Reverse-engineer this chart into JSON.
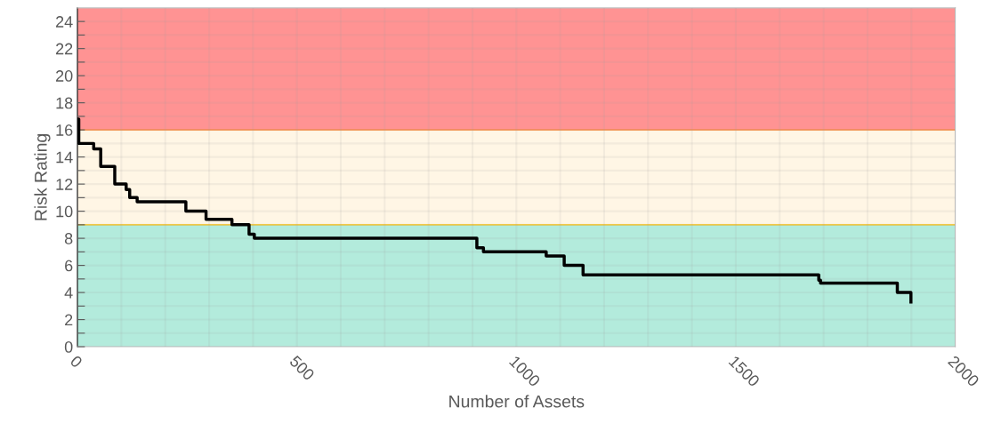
{
  "chart_data": {
    "type": "step",
    "xlabel": "Number of Assets",
    "ylabel": "Risk Rating",
    "xlim": [
      0,
      2000
    ],
    "ylim": [
      0,
      25
    ],
    "xticks": [
      0,
      {
        "value": 100,
        "label": null
      },
      {
        "value": 200,
        "label": null
      },
      {
        "value": 300,
        "label": null
      },
      {
        "value": 400,
        "label": null
      },
      500,
      {
        "value": 600,
        "label": null
      },
      {
        "value": 700,
        "label": null
      },
      {
        "value": 800,
        "label": null
      },
      {
        "value": 900,
        "label": null
      },
      1000,
      {
        "value": 1100,
        "label": null
      },
      {
        "value": 1200,
        "label": null
      },
      {
        "value": 1300,
        "label": null
      },
      {
        "value": 1400,
        "label": null
      },
      1500,
      {
        "value": 1600,
        "label": null
      },
      {
        "value": 1700,
        "label": null
      },
      {
        "value": 1800,
        "label": null
      },
      {
        "value": 1900,
        "label": null
      },
      2000
    ],
    "yticks": [
      0,
      {
        "value": 1,
        "label": null
      },
      2,
      {
        "value": 3,
        "label": null
      },
      4,
      {
        "value": 5,
        "label": null
      },
      6,
      {
        "value": 7,
        "label": null
      },
      8,
      {
        "value": 9,
        "label": null
      },
      10,
      {
        "value": 11,
        "label": null
      },
      12,
      {
        "value": 13,
        "label": null
      },
      14,
      {
        "value": 15,
        "label": null
      },
      16,
      {
        "value": 17,
        "label": null
      },
      18,
      {
        "value": 19,
        "label": null
      },
      20,
      {
        "value": 21,
        "label": null
      },
      22,
      {
        "value": 23,
        "label": null
      },
      24
    ],
    "grid": true,
    "marker": "none",
    "line_style": "solid",
    "bands": [
      {
        "axis": "y",
        "from": 0,
        "to": 9,
        "color": "#b3ebdc"
      },
      {
        "axis": "y",
        "from": 9,
        "to": 16,
        "color": "#fff6e5"
      },
      {
        "axis": "y",
        "from": 16,
        "to": 25,
        "color": "#ff9393"
      }
    ],
    "ref_lines": [
      {
        "axis": "y",
        "value": 9,
        "color": "#ffc000"
      },
      {
        "axis": "y",
        "value": 16,
        "color": "#ff7f27"
      }
    ],
    "series": [
      {
        "color": "#000000",
        "x": [
          0,
          3,
          37,
          53,
          85,
          111,
          119,
          136,
          247,
          293,
          352,
          391,
          403,
          910,
          925,
          1068,
          1109,
          1152,
          1689,
          1693,
          1868,
          1899
        ],
        "values": [
          16.8,
          15,
          14.6,
          13.3,
          12,
          11.6,
          11,
          10.7,
          10,
          9.4,
          9,
          8.3,
          8,
          7.3,
          7,
          6.7,
          6,
          5.3,
          4.9,
          4.7,
          4,
          3.3
        ]
      }
    ]
  }
}
